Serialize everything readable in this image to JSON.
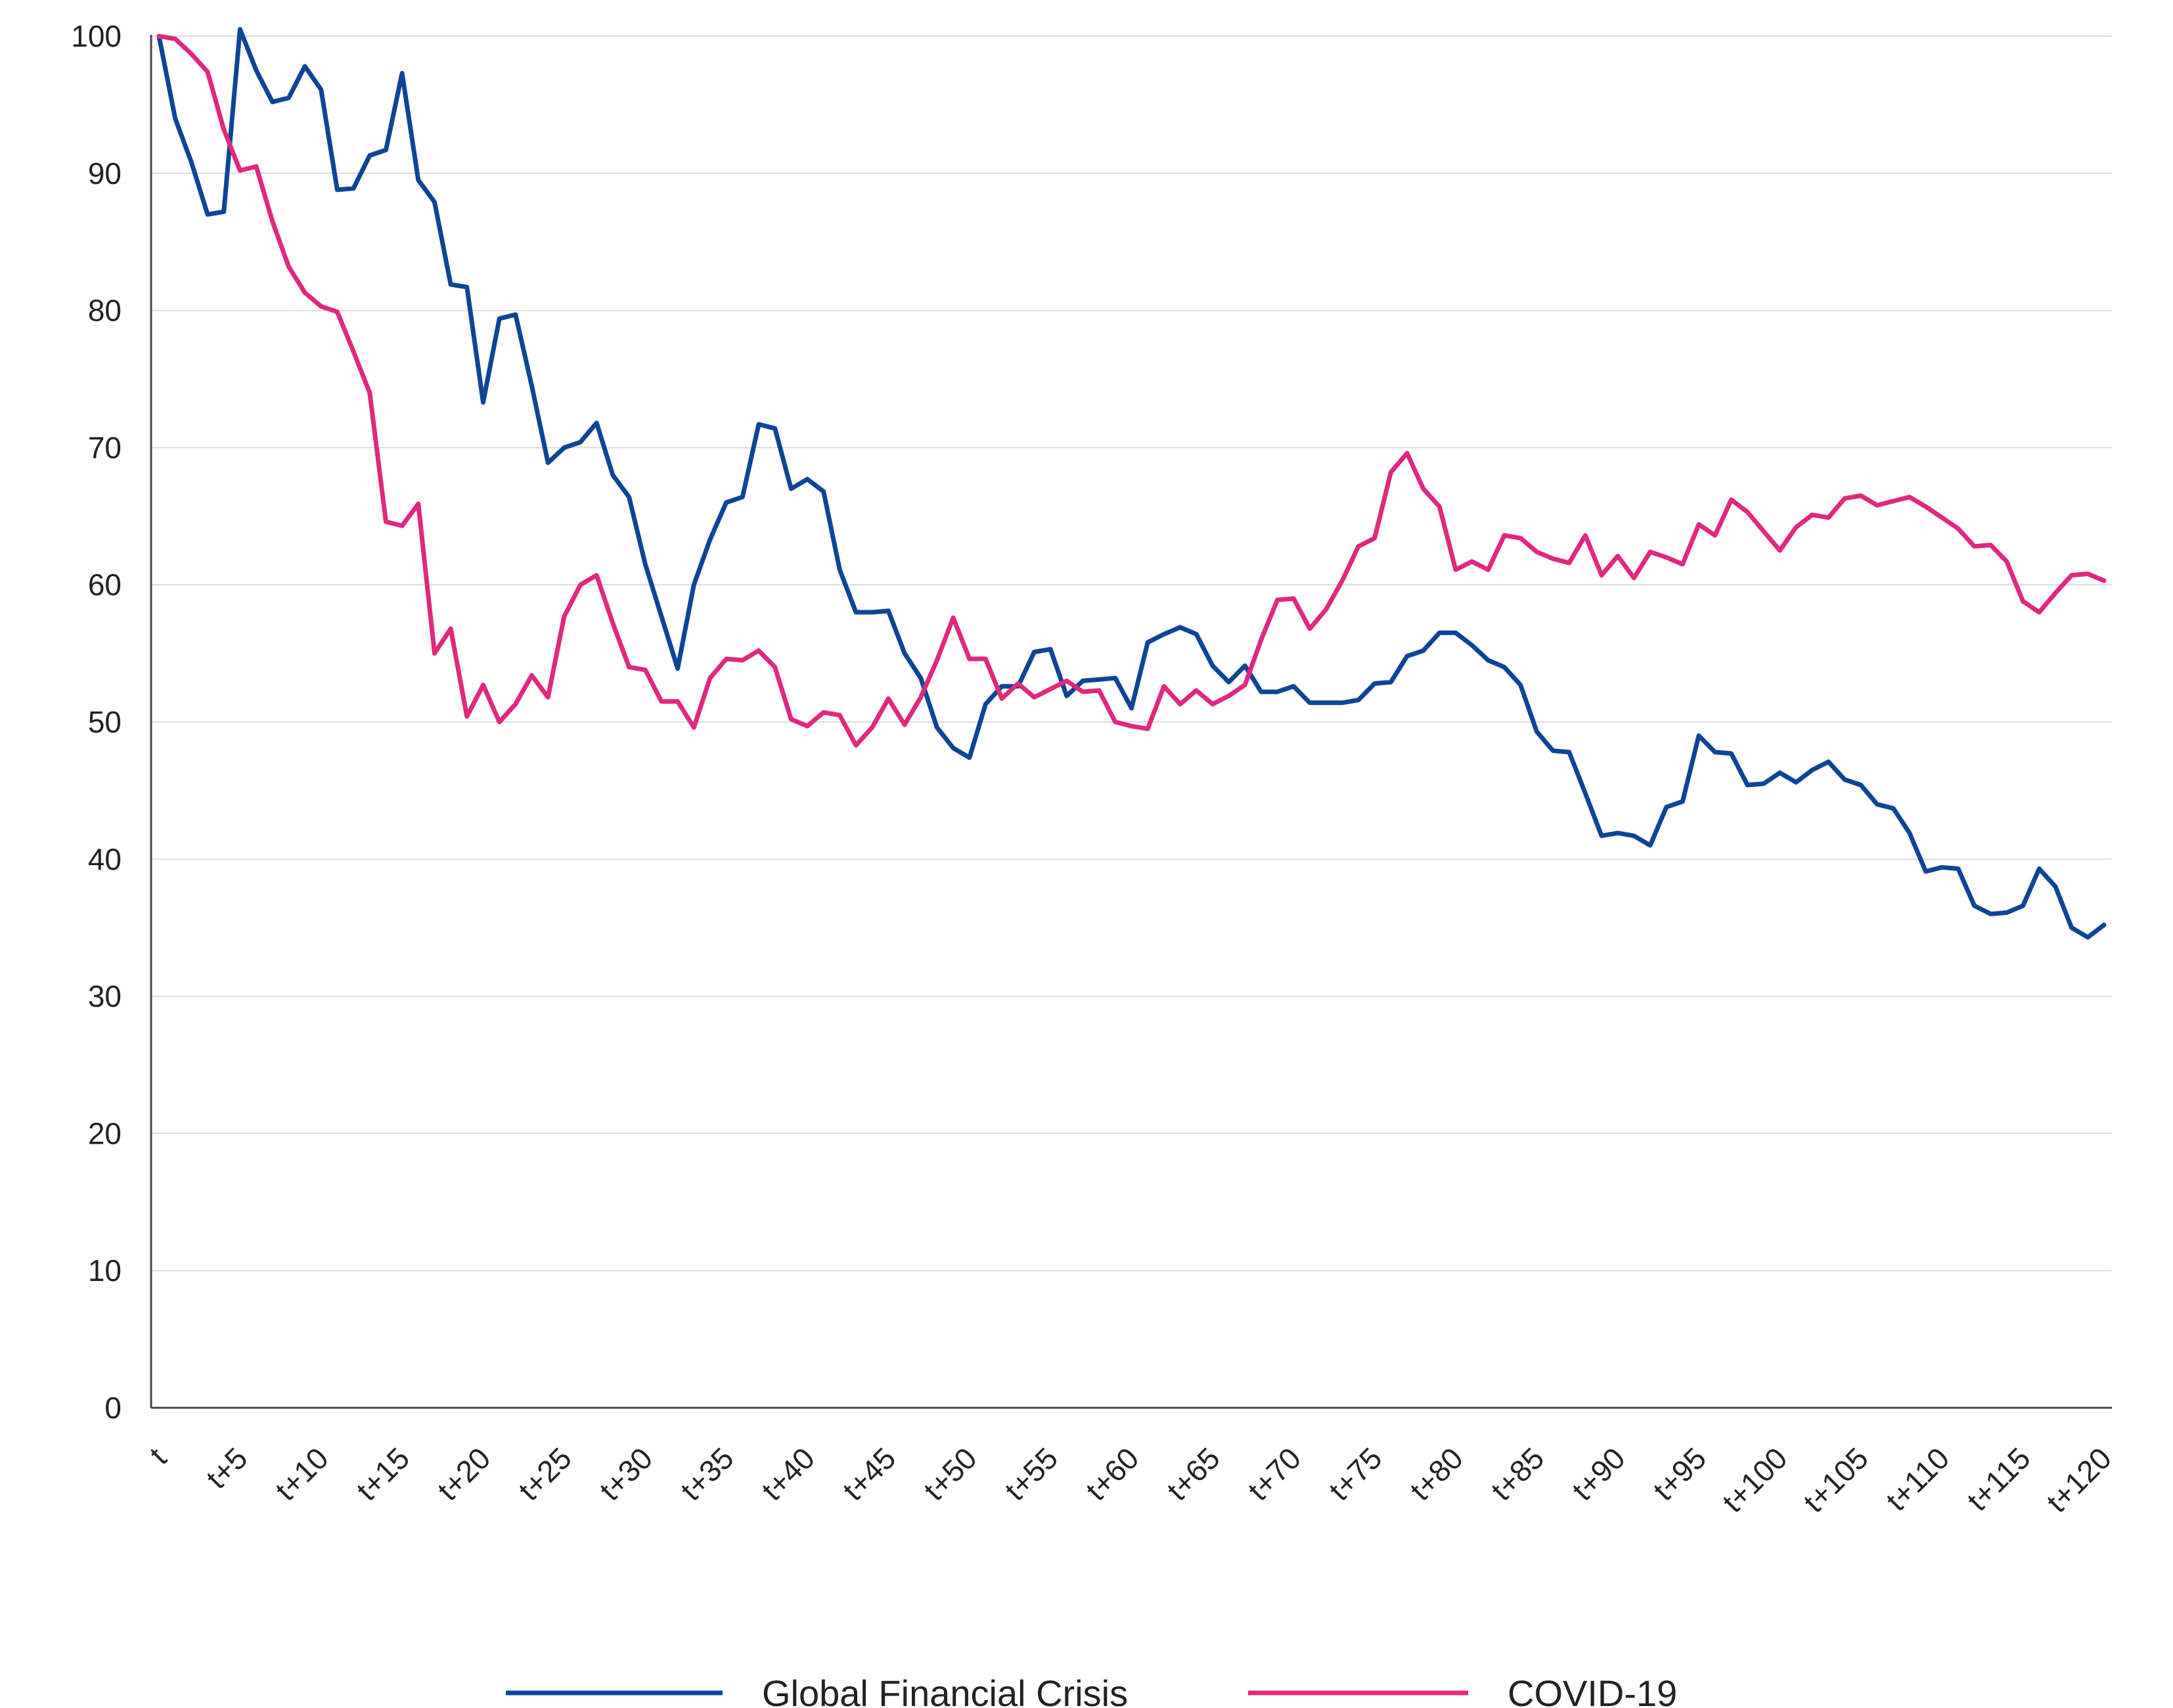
{
  "chart_data": {
    "type": "line",
    "title": "",
    "xlabel": "",
    "ylabel": "",
    "ylim": [
      0,
      100
    ],
    "yticks": [
      0,
      10,
      20,
      30,
      40,
      50,
      60,
      70,
      80,
      90,
      100
    ],
    "x_tick_labels": [
      "t",
      "t+5",
      "t+10",
      "t+15",
      "t+20",
      "t+25",
      "t+30",
      "t+35",
      "t+40",
      "t+45",
      "t+50",
      "t+55",
      "t+60",
      "t+65",
      "t+70",
      "t+75",
      "t+80",
      "t+85",
      "t+90",
      "t+95",
      "t+100",
      "t+105",
      "t+110",
      "t+115",
      "t+120"
    ],
    "x_range": [
      0,
      120
    ],
    "grid": "horizontal",
    "legend_position": "bottom",
    "series": [
      {
        "name": "Global Financial Crisis",
        "color": "#0c4596",
        "values": [
          100.0,
          94.0,
          90.8,
          87.0,
          87.2,
          100.5,
          97.5,
          95.2,
          95.5,
          97.8,
          96.1,
          88.8,
          88.9,
          91.3,
          91.7,
          97.3,
          89.5,
          87.9,
          81.9,
          81.7,
          73.3,
          79.4,
          79.7,
          74.5,
          68.9,
          70.0,
          70.4,
          71.8,
          68.0,
          66.4,
          61.5,
          57.7,
          53.9,
          60.0,
          63.3,
          66.0,
          66.4,
          71.7,
          71.4,
          67.0,
          67.7,
          66.8,
          61.1,
          58.0,
          58.0,
          58.1,
          55.0,
          53.2,
          49.6,
          48.1,
          47.4,
          51.3,
          52.6,
          52.6,
          55.1,
          55.3,
          51.9,
          53.0,
          53.1,
          53.2,
          51.0,
          55.8,
          56.4,
          56.9,
          56.4,
          54.1,
          52.9,
          54.1,
          52.2,
          52.2,
          52.6,
          51.4,
          51.4,
          51.4,
          51.6,
          52.8,
          52.9,
          54.8,
          55.2,
          56.5,
          56.5,
          55.6,
          54.5,
          54.0,
          52.7,
          49.3,
          47.9,
          47.8,
          44.8,
          41.7,
          41.9,
          41.7,
          41.0,
          43.8,
          44.2,
          49.0,
          47.8,
          47.7,
          45.4,
          45.5,
          46.3,
          45.6,
          46.5,
          47.1,
          45.8,
          45.4,
          44.0,
          43.7,
          41.9,
          39.1,
          39.4,
          39.3,
          36.6,
          36.0,
          36.1,
          36.6,
          39.3,
          38.0,
          35.0,
          34.3,
          35.2
        ]
      },
      {
        "name": "COVID-19",
        "color": "#e0287f",
        "values": [
          100.0,
          99.8,
          98.7,
          97.4,
          93.2,
          90.2,
          90.5,
          86.5,
          83.2,
          81.3,
          80.3,
          79.9,
          77.0,
          74.0,
          64.6,
          64.3,
          65.9,
          55.0,
          56.8,
          50.4,
          52.7,
          50.0,
          51.3,
          53.4,
          51.8,
          57.7,
          60.0,
          60.7,
          57.2,
          54.0,
          53.8,
          51.5,
          51.5,
          49.6,
          53.2,
          54.6,
          54.5,
          55.2,
          54.0,
          50.2,
          49.7,
          50.7,
          50.5,
          48.3,
          49.6,
          51.7,
          49.8,
          51.8,
          54.5,
          57.6,
          54.6,
          54.6,
          51.7,
          52.8,
          51.8,
          52.4,
          53.0,
          52.2,
          52.3,
          50.0,
          49.7,
          49.5,
          52.6,
          51.3,
          52.3,
          51.3,
          51.9,
          52.7,
          56.0,
          58.9,
          59.0,
          56.8,
          58.2,
          60.3,
          62.8,
          63.4,
          68.2,
          69.6,
          67.0,
          65.7,
          61.1,
          61.7,
          61.1,
          63.6,
          63.4,
          62.4,
          61.9,
          61.6,
          63.6,
          60.7,
          62.1,
          60.5,
          62.4,
          62.0,
          61.5,
          64.4,
          63.6,
          66.2,
          65.3,
          63.9,
          62.5,
          64.2,
          65.1,
          64.9,
          66.3,
          66.5,
          65.8,
          66.1,
          66.4,
          65.7,
          64.9,
          64.1,
          62.8,
          62.9,
          61.7,
          58.8,
          58.0,
          59.4,
          60.7,
          60.8,
          60.3
        ]
      }
    ]
  }
}
